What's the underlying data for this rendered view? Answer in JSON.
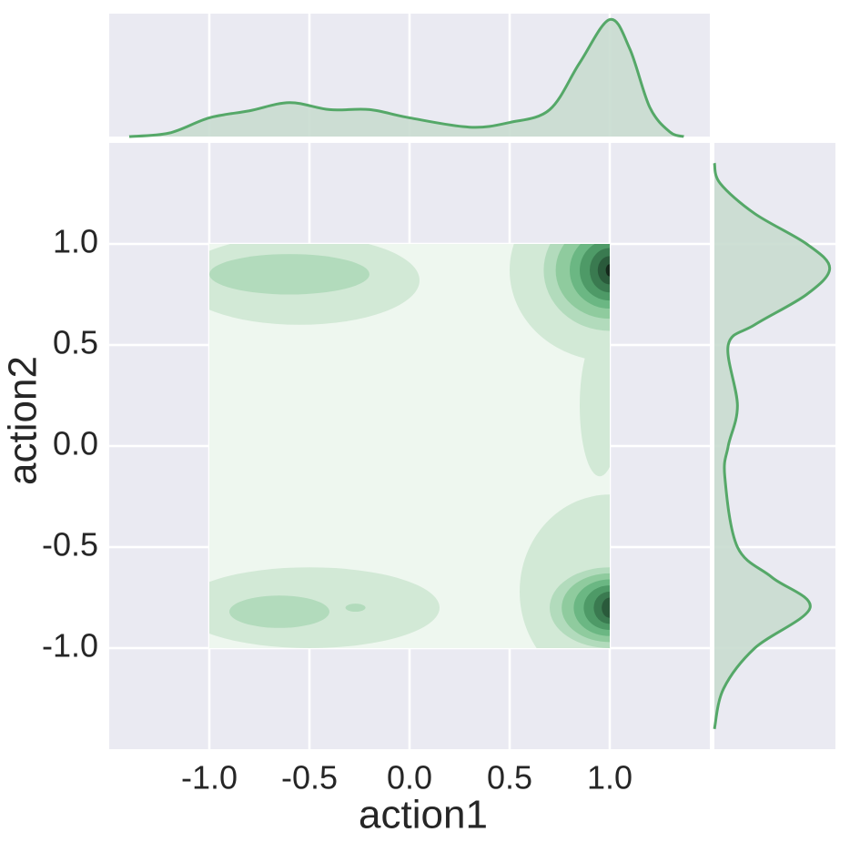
{
  "chart_data": {
    "type": "kde-joint",
    "xlabel": "action1",
    "ylabel": "action2",
    "xlim": [
      -1.5,
      1.5
    ],
    "ylim": [
      -1.5,
      1.5
    ],
    "xticks": [
      {
        "value": -1,
        "label": "-1.0"
      },
      {
        "value": -0.5,
        "label": "-0.5"
      },
      {
        "value": 0,
        "label": "0.0"
      },
      0.5,
      {
        "value": 1,
        "label": "1.0"
      }
    ],
    "yticks": [
      {
        "value": 1,
        "label": "1.0"
      },
      0.5,
      {
        "value": 0,
        "label": "0.0"
      },
      {
        "value": -0.5,
        "label": "-0.5"
      },
      {
        "value": -1,
        "label": "-1.0"
      }
    ],
    "grid": true,
    "color": "#55a868",
    "fill_color": "#c9dccf",
    "support": [
      -1,
      1
    ],
    "level_colors": [
      "#eef7ef",
      "#d2e9d6",
      "#b2dbbc",
      "#8fcb9e",
      "#6bb783",
      "#4e9a67",
      "#3a7a50",
      "#2a5a3b",
      "#15291c"
    ],
    "contours": [
      {
        "x": -0.55,
        "y": 0.82,
        "rx": 0.6,
        "ry": 0.22,
        "level": 1
      },
      {
        "x": -0.6,
        "y": 0.85,
        "rx": 0.4,
        "ry": 0.1,
        "level": 2
      },
      {
        "x": -0.5,
        "y": -0.8,
        "rx": 0.65,
        "ry": 0.2,
        "level": 1
      },
      {
        "x": -0.65,
        "y": -0.82,
        "rx": 0.25,
        "ry": 0.08,
        "level": 2
      },
      {
        "x": -0.27,
        "y": -0.8,
        "rx": 0.05,
        "ry": 0.02,
        "level": 2
      },
      {
        "x": 0.95,
        "y": 0.2,
        "rx": 0.1,
        "ry": 0.35,
        "level": 1
      },
      {
        "x": 1.0,
        "y": 0.87,
        "rx": 0.5,
        "ry": 0.45,
        "level": 1
      },
      {
        "x": 1.0,
        "y": 0.87,
        "rx": 0.33,
        "ry": 0.3,
        "level": 2
      },
      {
        "x": 1.0,
        "y": 0.87,
        "rx": 0.27,
        "ry": 0.24,
        "level": 3
      },
      {
        "x": 1.0,
        "y": 0.87,
        "rx": 0.2,
        "ry": 0.19,
        "level": 4
      },
      {
        "x": 1.0,
        "y": 0.87,
        "rx": 0.15,
        "ry": 0.15,
        "level": 5
      },
      {
        "x": 1.0,
        "y": 0.87,
        "rx": 0.1,
        "ry": 0.11,
        "level": 6
      },
      {
        "x": 1.0,
        "y": 0.87,
        "rx": 0.06,
        "ry": 0.07,
        "level": 7
      },
      {
        "x": 1.0,
        "y": 0.87,
        "rx": 0.02,
        "ry": 0.03,
        "level": 8
      },
      {
        "x": 1.0,
        "y": -0.72,
        "rx": 0.45,
        "ry": 0.48,
        "level": 1
      },
      {
        "x": 1.0,
        "y": -0.8,
        "rx": 0.3,
        "ry": 0.2,
        "level": 2
      },
      {
        "x": 1.0,
        "y": -0.8,
        "rx": 0.24,
        "ry": 0.17,
        "level": 3
      },
      {
        "x": 1.0,
        "y": -0.8,
        "rx": 0.18,
        "ry": 0.14,
        "level": 4
      },
      {
        "x": 1.0,
        "y": -0.8,
        "rx": 0.13,
        "ry": 0.11,
        "level": 5
      },
      {
        "x": 1.0,
        "y": -0.8,
        "rx": 0.08,
        "ry": 0.08,
        "level": 6
      },
      {
        "x": 1.0,
        "y": -0.8,
        "rx": 0.04,
        "ry": 0.05,
        "level": 7
      }
    ],
    "marginal_x": {
      "x": [
        -1.4,
        -1.2,
        -1.0,
        -0.8,
        -0.6,
        -0.4,
        -0.2,
        0,
        0.3,
        0.5,
        0.7,
        0.85,
        1.0,
        1.1,
        1.2,
        1.3,
        1.37
      ],
      "density": [
        0,
        0.03,
        0.16,
        0.22,
        0.29,
        0.23,
        0.23,
        0.16,
        0.08,
        0.12,
        0.23,
        0.63,
        1.0,
        0.75,
        0.25,
        0.04,
        0
      ]
    },
    "marginal_y": {
      "y": [
        1.4,
        1.3,
        1.15,
        1.0,
        0.88,
        0.75,
        0.6,
        0.5,
        0.2,
        0,
        -0.15,
        -0.5,
        -0.65,
        -0.8,
        -1.0,
        -1.2,
        -1.4
      ],
      "density": [
        0,
        0.05,
        0.35,
        0.8,
        1.0,
        0.8,
        0.35,
        0.12,
        0.2,
        0.12,
        0.09,
        0.2,
        0.5,
        0.83,
        0.35,
        0.08,
        0
      ]
    },
    "marginal_lim": [
      0,
      1.05
    ]
  }
}
